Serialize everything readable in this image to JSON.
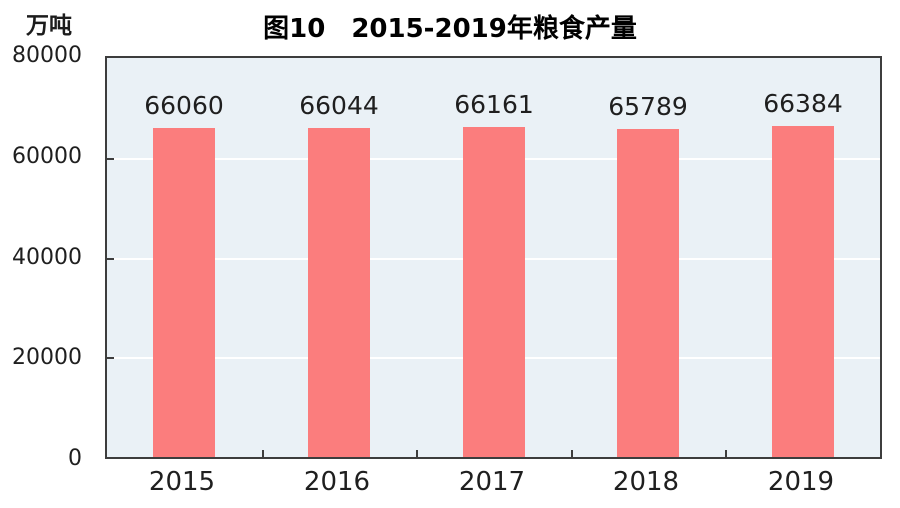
{
  "chart_data": {
    "type": "bar",
    "title": "图10　2015-2019年粮食产量",
    "unit_label": "万吨",
    "categories": [
      "2015",
      "2016",
      "2017",
      "2018",
      "2019"
    ],
    "values": [
      66060,
      66044,
      66161,
      65789,
      66384
    ],
    "data_labels": [
      "66060",
      "66044",
      "66161",
      "65789",
      "66384"
    ],
    "ylim": [
      0,
      80000
    ],
    "yticks": [
      0,
      20000,
      40000,
      60000,
      80000
    ],
    "ytick_labels": [
      "0",
      "20000",
      "40000",
      "60000",
      "80000"
    ],
    "xlabel": "",
    "ylabel": "万吨",
    "grid": "horizontal",
    "legend_position": "none"
  },
  "colors": {
    "bar_fill": "#FB7D7D",
    "plot_background": "#EAF1F6",
    "gridline": "#FFFFFF",
    "plot_border": "#3D3D3D",
    "text": "#1F1F1F",
    "title_text": "#000000",
    "page_background": "#FFFFFF"
  }
}
